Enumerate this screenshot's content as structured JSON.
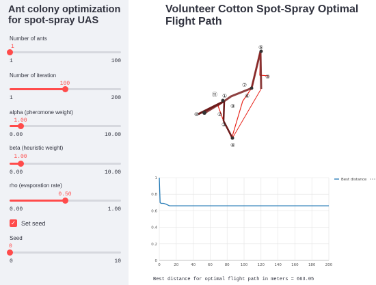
{
  "sidebar": {
    "title": "Ant colony optimization for spot-spray UAS",
    "sliders": [
      {
        "label": "Number of ants",
        "value": "1",
        "min": "1",
        "max": "100",
        "fraction": 0.0
      },
      {
        "label": "Number of iteration",
        "value": "100",
        "min": "1",
        "max": "200",
        "fraction": 0.5
      },
      {
        "label": "alpha (pheromone weight)",
        "value": "1.00",
        "min": "0.00",
        "max": "10.00",
        "fraction": 0.1
      },
      {
        "label": "beta (heuristic weight)",
        "value": "1.00",
        "min": "0.00",
        "max": "10.00",
        "fraction": 0.1
      },
      {
        "label": "rho (evaporation rate)",
        "value": "0.50",
        "min": "0.00",
        "max": "1.00",
        "fraction": 0.5
      }
    ],
    "checkbox": {
      "label": "Set seed",
      "checked": true,
      "mark": "✓"
    },
    "seed": {
      "label": "Seed",
      "value": "0",
      "min": "0",
      "max": "10",
      "fraction": 0.0
    },
    "accent_color": "#ff4b4b"
  },
  "main": {
    "title": "Volunteer Cotton Spot-Spray Optimal Flight Path",
    "route_node_labels": [
      "①",
      "②",
      "③",
      "④",
      "⑤",
      "⑥",
      "⑦",
      "⑧",
      "⑨",
      "⑪"
    ],
    "caption": "Best distance for optimal flight path in meters = 663.05"
  },
  "chart_data": {
    "type": "line",
    "series": [
      {
        "name": "Best distance",
        "color": "#1f77b4",
        "x": [
          0,
          1,
          2,
          3,
          5,
          8,
          10,
          12,
          15,
          30,
          60,
          100,
          150,
          200
        ],
        "y": [
          1.0,
          0.7,
          0.69,
          0.69,
          0.69,
          0.68,
          0.67,
          0.66,
          0.66,
          0.66,
          0.66,
          0.66,
          0.66,
          0.66
        ]
      }
    ],
    "x_ticks": [
      "0",
      "20",
      "40",
      "60",
      "80",
      "100",
      "120",
      "140",
      "160",
      "180",
      "200"
    ],
    "y_ticks": [
      "0",
      "0.2",
      "0.4",
      "0.6",
      "0.8",
      "1"
    ],
    "xlim": [
      0,
      200
    ],
    "ylim": [
      0,
      1
    ],
    "legend_position": "top-right",
    "grid": true
  }
}
